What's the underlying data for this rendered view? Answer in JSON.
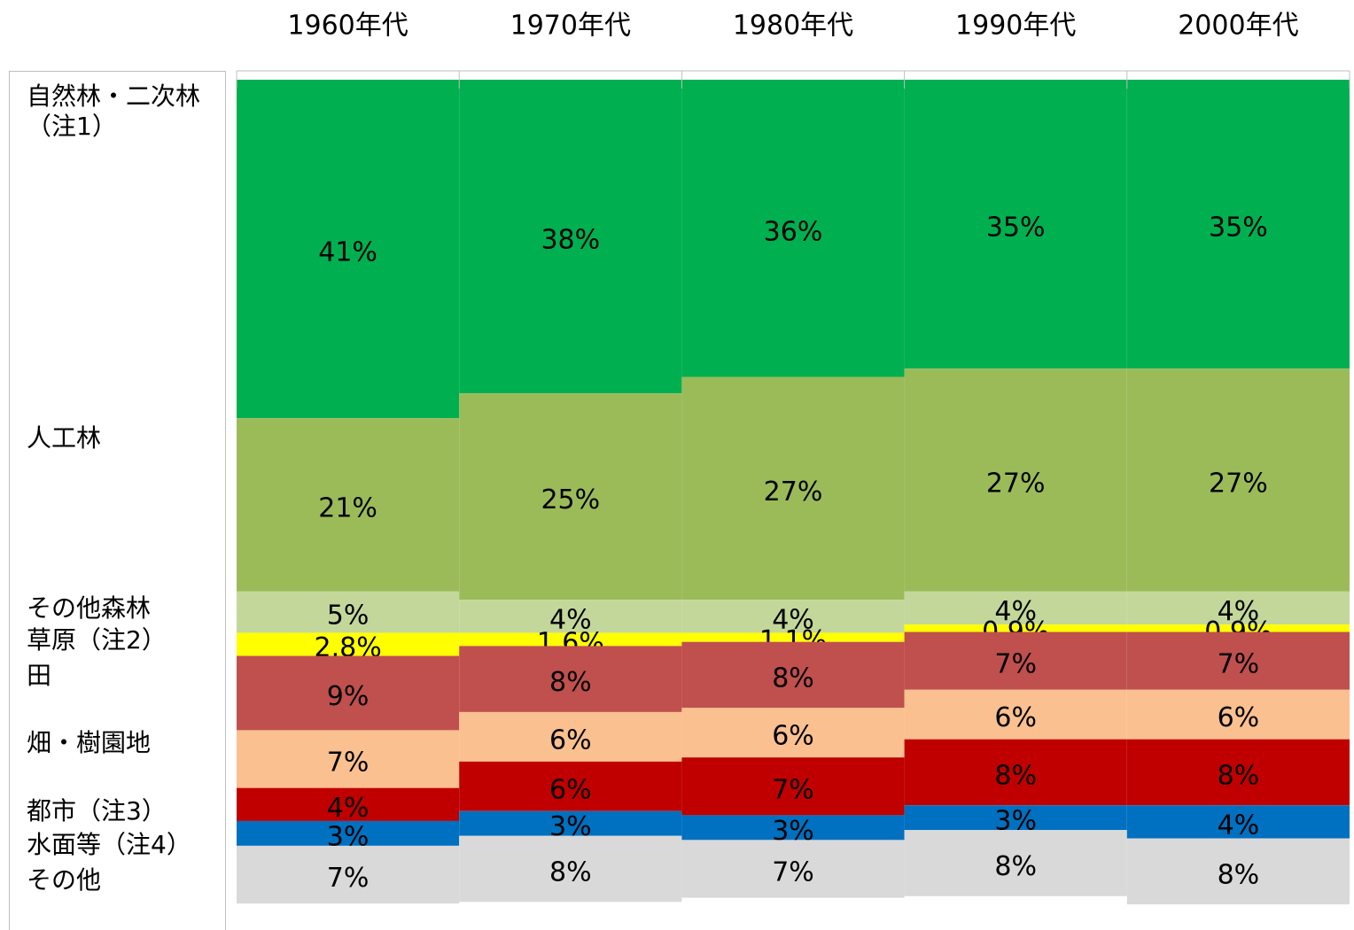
{
  "chart_data": {
    "type": "stacked_bar",
    "categories": [
      "1960年代",
      "1970年代",
      "1980年代",
      "1990年代",
      "2000年代"
    ],
    "series": [
      {
        "name": "自然林・二次林\n（注1）",
        "color": "#00b050",
        "values": [
          41,
          38,
          36,
          35,
          35
        ],
        "value_labels": [
          "41%",
          "38%",
          "36%",
          "35%",
          "35%"
        ]
      },
      {
        "name": "人工林",
        "color": "#9bbb59",
        "values": [
          21,
          25,
          27,
          27,
          27
        ],
        "value_labels": [
          "21%",
          "25%",
          "27%",
          "27%",
          "27%"
        ]
      },
      {
        "name": "その他森林",
        "color": "#c4d79b",
        "values": [
          5,
          4,
          4,
          4,
          4
        ],
        "value_labels": [
          "5%",
          "4%",
          "4%",
          "4%",
          "4%"
        ]
      },
      {
        "name": "草原（注2）",
        "color": "#ffff00",
        "values": [
          2.8,
          1.6,
          1.1,
          0.9,
          0.9
        ],
        "value_labels": [
          "2.8%",
          "1.6%",
          "1.1%",
          "0.9%",
          "0.9%"
        ]
      },
      {
        "name": "田",
        "color": "#c0504d",
        "values": [
          9,
          8,
          8,
          7,
          7
        ],
        "value_labels": [
          "9%",
          "8%",
          "8%",
          "7%",
          "7%"
        ]
      },
      {
        "name": "畑・樹園地",
        "color": "#fac090",
        "values": [
          7,
          6,
          6,
          6,
          6
        ],
        "value_labels": [
          "7%",
          "6%",
          "6%",
          "6%",
          "6%"
        ]
      },
      {
        "name": "都市（注3）",
        "color": "#c00000",
        "values": [
          4,
          6,
          7,
          8,
          8
        ],
        "value_labels": [
          "4%",
          "6%",
          "7%",
          "8%",
          "8%"
        ]
      },
      {
        "name": "水面等（注4）",
        "color": "#0070c0",
        "values": [
          3,
          3,
          3,
          3,
          4
        ],
        "value_labels": [
          "3%",
          "3%",
          "3%",
          "3%",
          "4%"
        ]
      },
      {
        "name": "その他",
        "color": "#d9d9d9",
        "values": [
          7,
          8,
          7,
          8,
          8
        ],
        "value_labels": [
          "7%",
          "8%",
          "7%",
          "8%",
          "8%"
        ]
      }
    ]
  }
}
